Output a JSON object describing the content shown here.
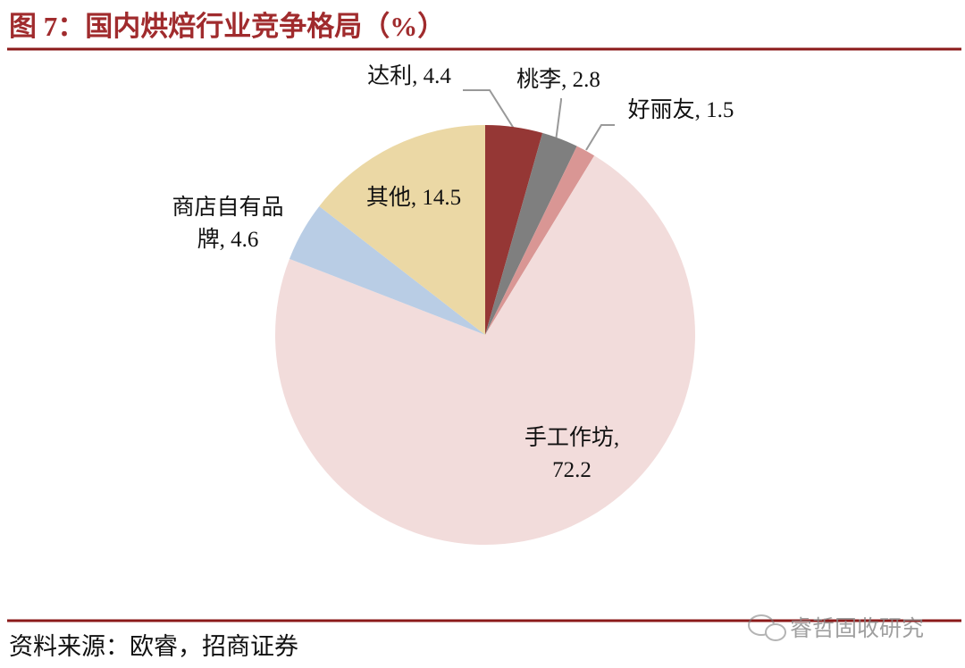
{
  "header": {
    "title": "图 7：国内烘焙行业竞争格局（%）"
  },
  "chart_data": {
    "type": "pie",
    "categories": [
      "达利",
      "桃李",
      "好丽友",
      "手工作坊",
      "商店自有品牌",
      "其他"
    ],
    "values": [
      4.4,
      2.8,
      1.5,
      72.2,
      4.6,
      14.5
    ],
    "value_labels": [
      [
        "达利, 4.4"
      ],
      [
        "桃李, 2.8"
      ],
      [
        "好丽友, 1.5"
      ],
      [
        "手工作坊,",
        "72.2"
      ],
      [
        "商店自有品",
        "牌, 4.6"
      ],
      [
        "其他, 14.5"
      ]
    ],
    "colors": [
      "#953735",
      "#7f7f7f",
      "#d99694",
      "#f2dcdb",
      "#b9cde5",
      "#ebd8a5"
    ]
  },
  "footer": {
    "source": "资料来源：欧睿，招商证券",
    "watermark": "睿哲固收研究"
  }
}
